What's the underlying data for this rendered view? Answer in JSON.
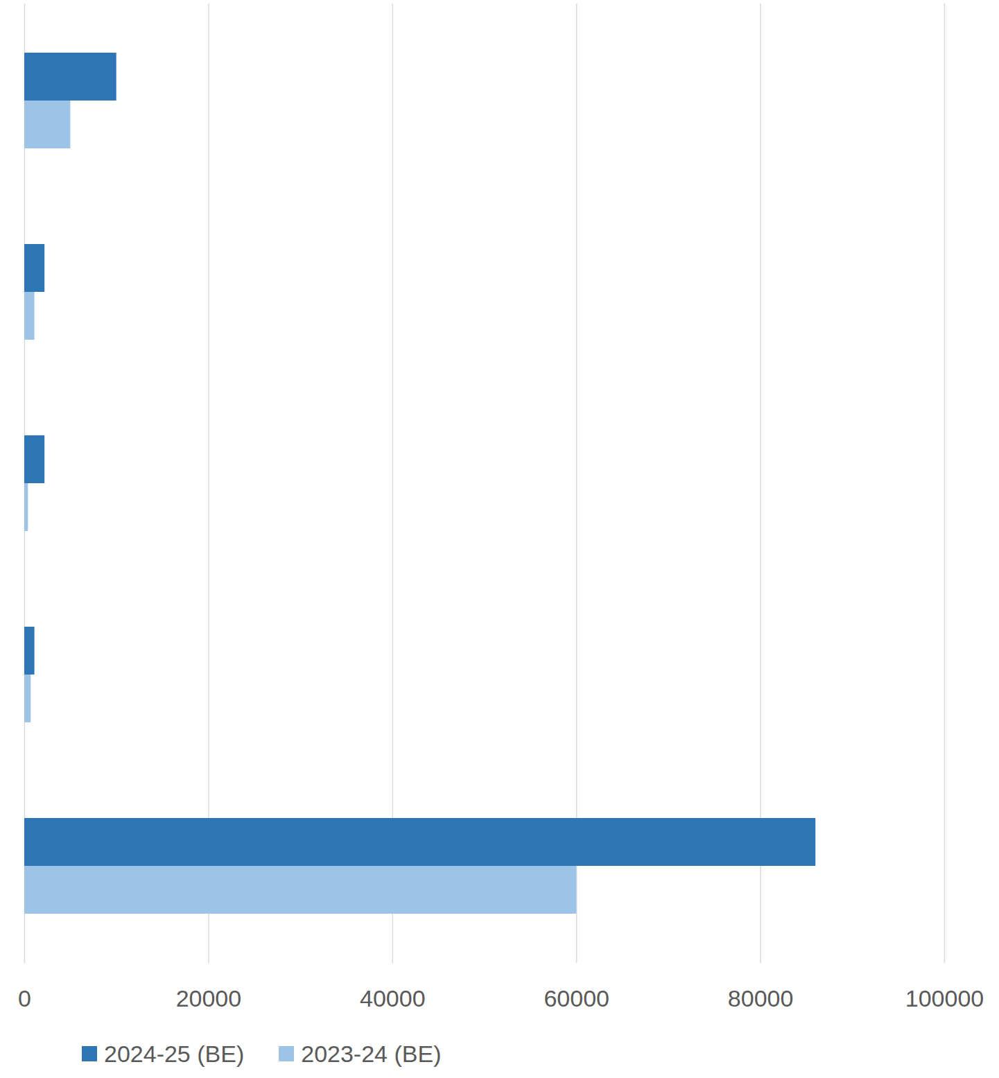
{
  "chart_data": {
    "type": "bar",
    "orientation": "horizontal",
    "categories": [
      null,
      null,
      null,
      null,
      null
    ],
    "series": [
      {
        "name": "2024-25 (BE)",
        "color": "#2e75b6",
        "values": [
          10000,
          2200,
          2200,
          1100,
          86000
        ]
      },
      {
        "name": "2023-24 (BE)",
        "color": "#9dc3e6",
        "values": [
          5000,
          1100,
          400,
          700,
          60000
        ]
      }
    ],
    "xlim": [
      0,
      100000
    ],
    "xticks": [
      0,
      20000,
      40000,
      60000,
      80000,
      100000
    ],
    "grid": true,
    "legend": "bottom"
  }
}
